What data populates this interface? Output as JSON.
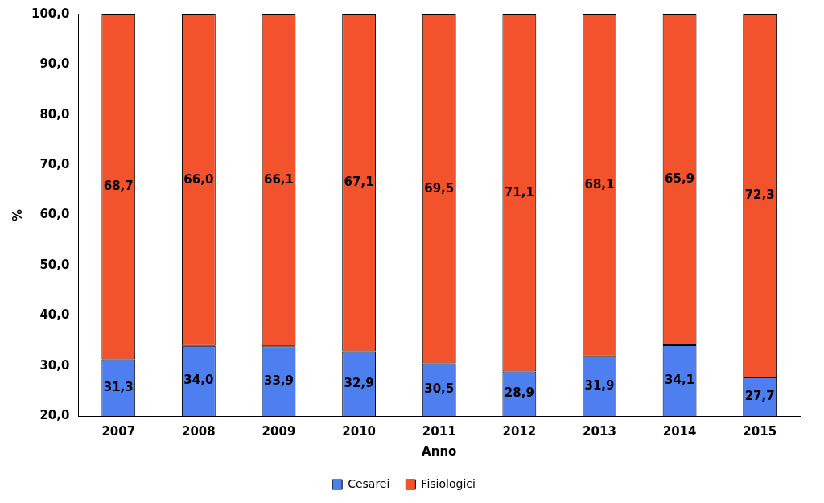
{
  "chart_data": {
    "type": "bar",
    "stacked": true,
    "grid": false,
    "legend": "bottom",
    "data_labels": true,
    "x_label": "Anno",
    "y_label": "%",
    "categories": [
      "2007",
      "2008",
      "2009",
      "2010",
      "2011",
      "2012",
      "2013",
      "2014",
      "2015"
    ],
    "series": [
      {
        "name": "Cesarei",
        "color": "#4d7ff0",
        "values": [
          31.3,
          34.0,
          33.9,
          32.9,
          30.5,
          28.9,
          31.9,
          34.1,
          27.7
        ],
        "value_labels": [
          "31,3",
          "34,0",
          "33,9",
          "32,9",
          "30,5",
          "28,9",
          "31,9",
          "34,1",
          "27,7"
        ]
      },
      {
        "name": "Fisiologici",
        "color": "#f2532c",
        "values": [
          68.7,
          66.0,
          66.1,
          67.1,
          69.5,
          71.1,
          68.1,
          65.9,
          72.3
        ],
        "value_labels": [
          "68,7",
          "66,0",
          "66,1",
          "67,1",
          "69,5",
          "71,1",
          "68,1",
          "65,9",
          "72,3"
        ]
      }
    ],
    "ylim": [
      20,
      100
    ],
    "yticks": [
      {
        "value": 20,
        "label": "20,0"
      },
      {
        "value": 30,
        "label": "30,0"
      },
      {
        "value": 40,
        "label": "40,0"
      },
      {
        "value": 50,
        "label": "50,0"
      },
      {
        "value": 60,
        "label": "60,0"
      },
      {
        "value": 70,
        "label": "70,0"
      },
      {
        "value": 80,
        "label": "80,0"
      },
      {
        "value": 90,
        "label": "90,0"
      },
      {
        "value": 100,
        "label": "100,0"
      }
    ]
  }
}
